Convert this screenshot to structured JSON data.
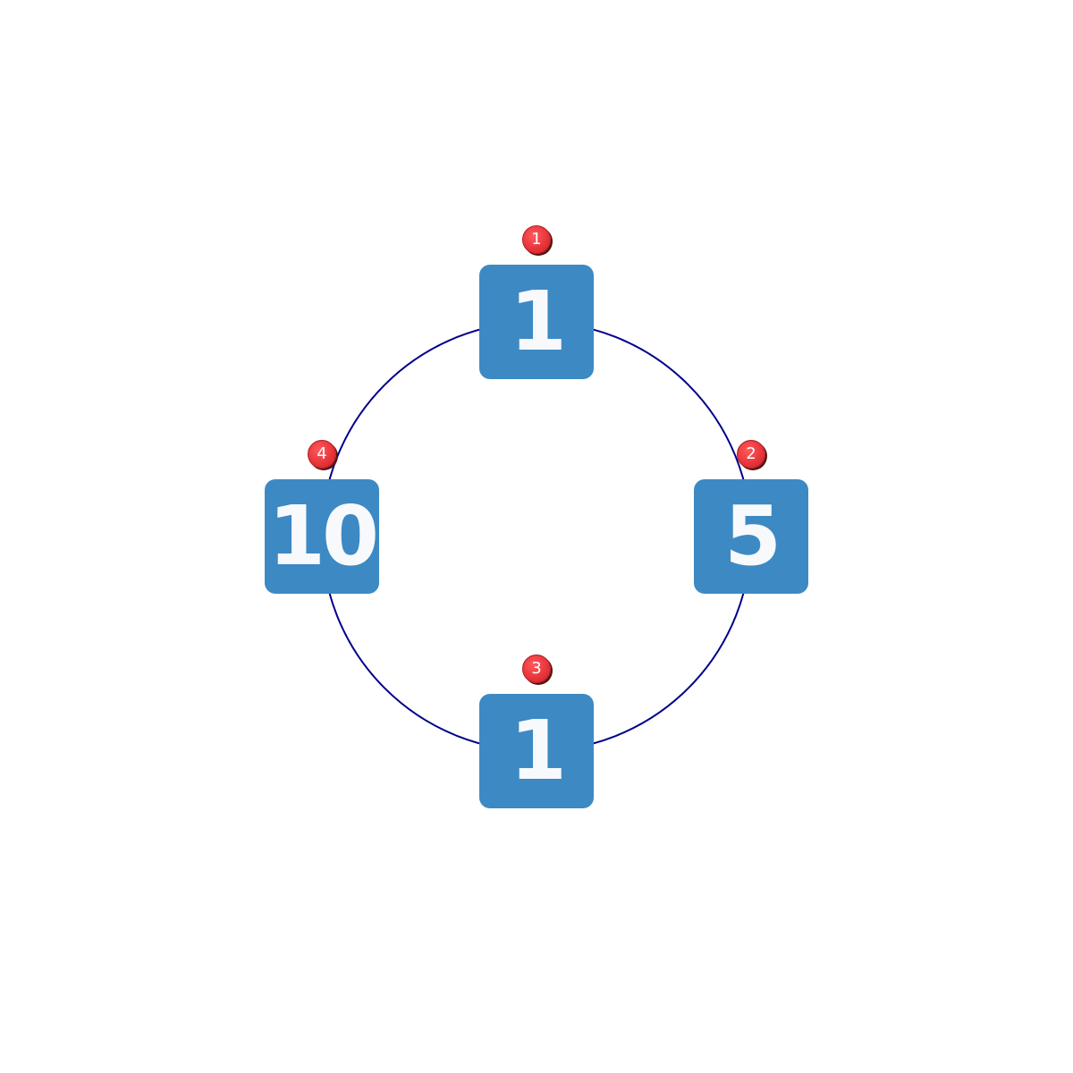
{
  "colors": {
    "ring": "#00008b",
    "tile": "#3d89c4",
    "tile_text": "#f7f9fc",
    "badge": "#e8363b",
    "badge_text": "#ffffff"
  },
  "nodes": [
    {
      "badge": "1",
      "value": "1"
    },
    {
      "badge": "2",
      "value": "5"
    },
    {
      "badge": "3",
      "value": "1"
    },
    {
      "badge": "4",
      "value": "10"
    }
  ]
}
